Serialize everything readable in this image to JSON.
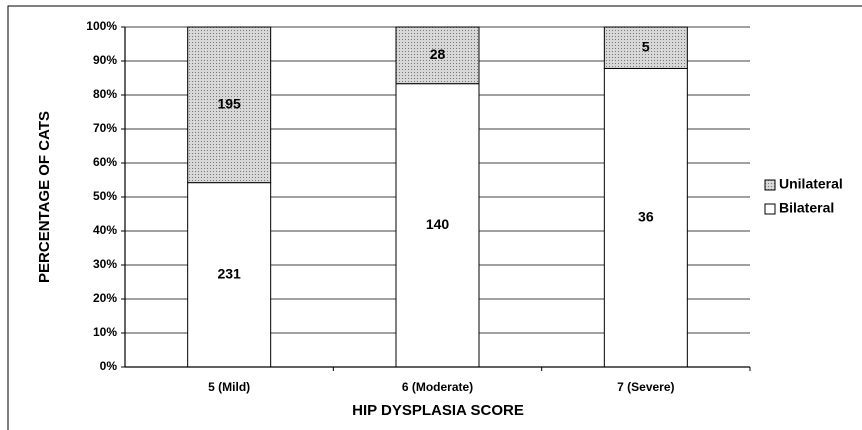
{
  "chart_data": {
    "type": "stacked_percent_bar",
    "categories": [
      "5 (Mild)",
      "6 (Moderate)",
      "7 (Severe)"
    ],
    "series": [
      {
        "name": "Bilateral",
        "color": "#ffffff",
        "values": [
          231,
          140,
          36
        ]
      },
      {
        "name": "Unilateral",
        "color": "#c8c8c8",
        "values": [
          195,
          28,
          5
        ]
      }
    ],
    "xlabel": "HIP DYSPLASIA SCORE",
    "ylabel": "PERCENTAGE OF CATS",
    "ylim": [
      0,
      100
    ],
    "yticks": [
      {
        "value": 0,
        "label": "0%"
      },
      {
        "value": 10,
        "label": "10%"
      },
      {
        "value": 20,
        "label": "20%"
      },
      {
        "value": 30,
        "label": "30%"
      },
      {
        "value": 40,
        "label": "40%"
      },
      {
        "value": 50,
        "label": "50%"
      },
      {
        "value": 60,
        "label": "60%"
      },
      {
        "value": 70,
        "label": "70%"
      },
      {
        "value": 80,
        "label": "80%"
      },
      {
        "value": 90,
        "label": "90%"
      },
      {
        "value": 100,
        "label": "100%"
      }
    ],
    "grid": true,
    "legend": "right"
  }
}
